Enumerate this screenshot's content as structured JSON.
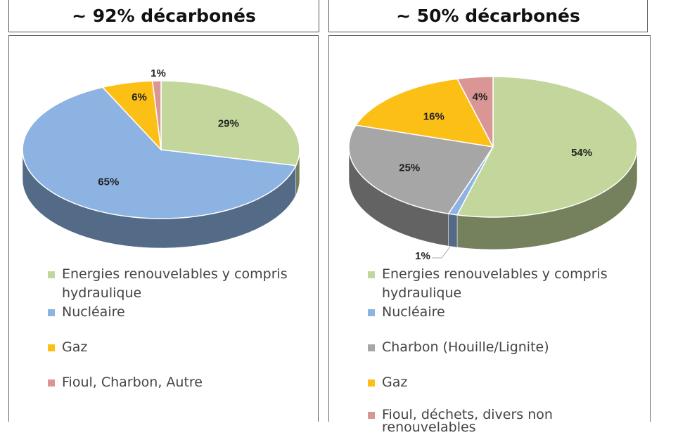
{
  "headers": [
    "~ 92% décarbonés",
    "~ 50% décarbonés"
  ],
  "chart_data": [
    {
      "type": "pie",
      "title": "~ 92% décarbonés",
      "categories": [
        "Energies renouvelables y compris hydraulique",
        "Nucléaire",
        "Gaz",
        "Fioul, Charbon, Autre"
      ],
      "values": [
        29,
        65,
        6,
        1
      ],
      "labels": [
        "29%",
        "65%",
        "6%",
        "1%"
      ],
      "colors": [
        "#c3d69b",
        "#8db3e2",
        "#fbbf16",
        "#d99694"
      ],
      "legend": "bottom"
    },
    {
      "type": "pie",
      "title": "~ 50% décarbonés",
      "categories": [
        "Energies renouvelables y compris hydraulique",
        "Nucléaire",
        "Charbon (Houille/Lignite)",
        "Gaz",
        "Fioul, déchets, divers non renouvelables"
      ],
      "values": [
        54,
        1,
        25,
        16,
        4
      ],
      "labels": [
        "54%",
        "1%",
        "25%",
        "16%",
        "4%"
      ],
      "colors": [
        "#c3d69b",
        "#8db3e2",
        "#a6a6a6",
        "#fbbf16",
        "#d99694"
      ],
      "legend": "bottom"
    }
  ]
}
